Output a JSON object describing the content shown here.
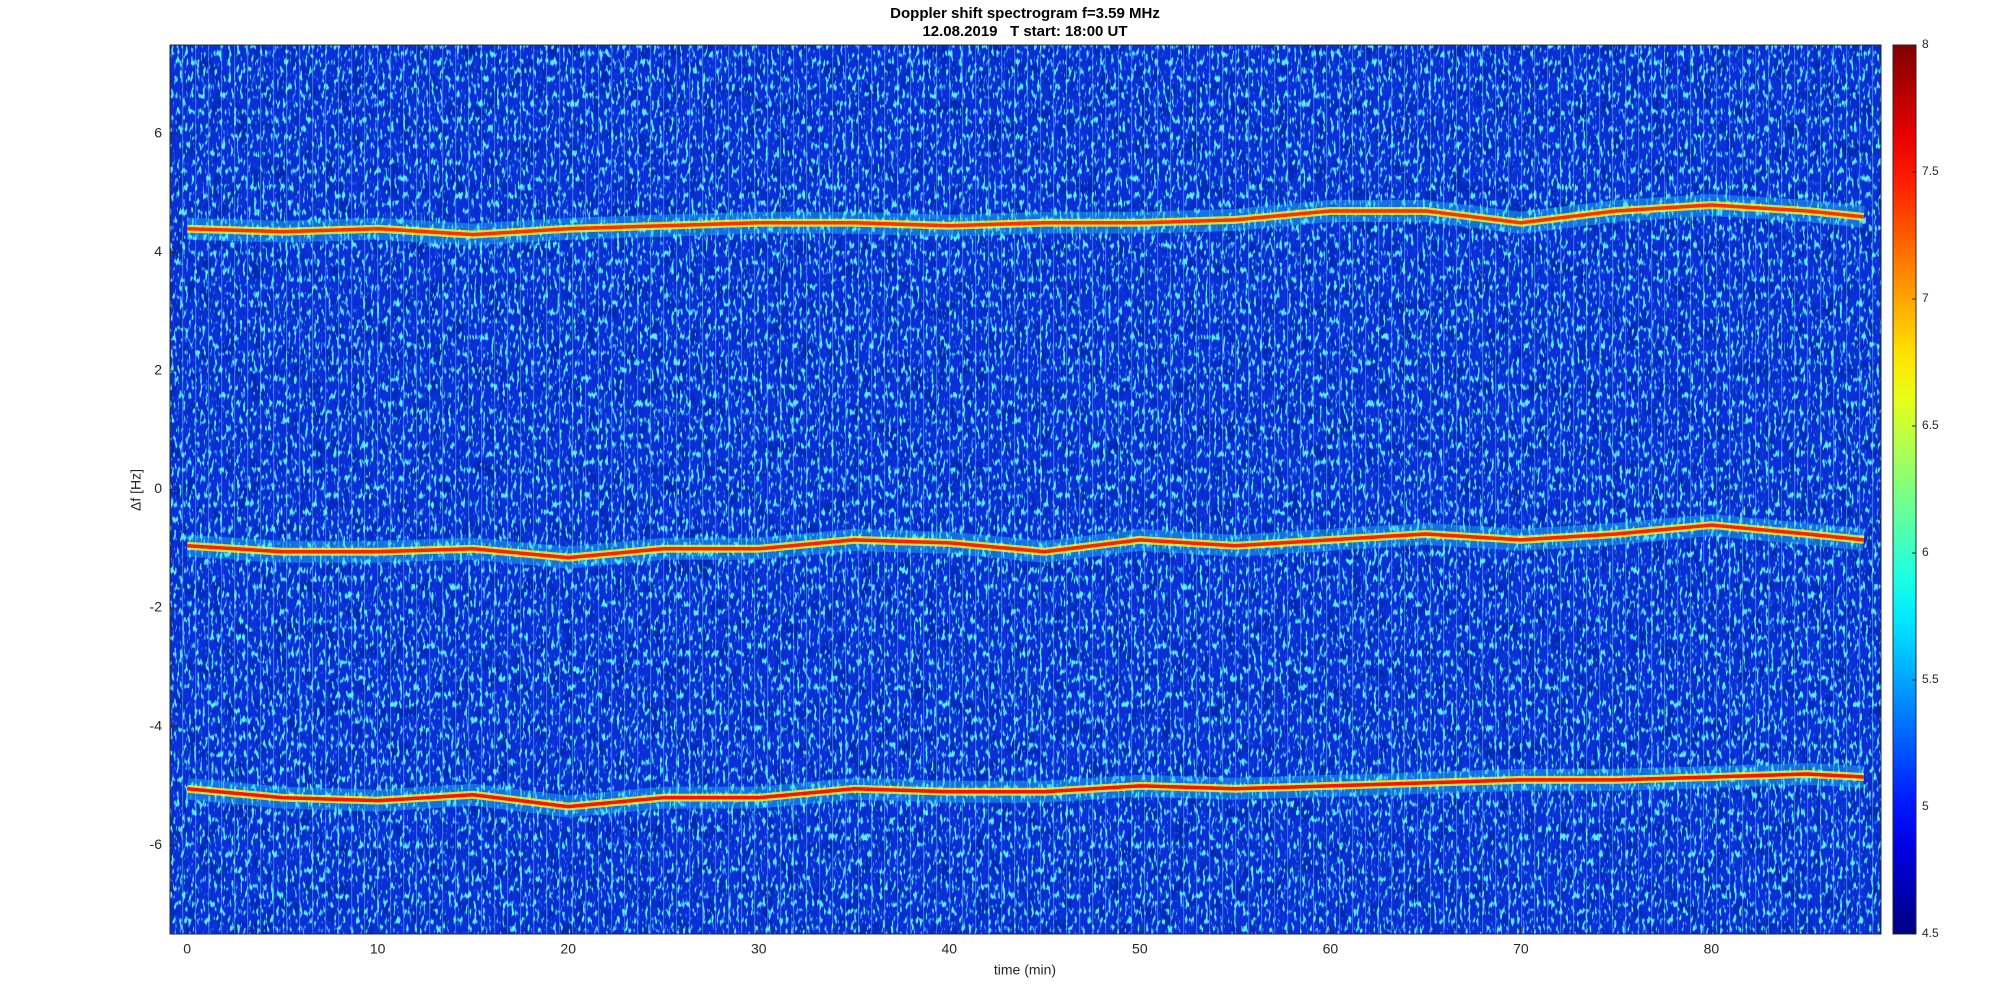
{
  "chart_data": {
    "type": "spectrogram",
    "title": "Doppler shift spectrogram f=3.59 MHz",
    "subtitle": "12.08.2019   T start: 18:00 UT",
    "xlabel": "time (min)",
    "ylabel": "Δf [Hz]",
    "xlim": [
      -0.9,
      88.9
    ],
    "xticks": [
      0,
      10,
      20,
      30,
      40,
      50,
      60,
      70,
      80
    ],
    "ylim": [
      -7.5,
      7.5
    ],
    "yticks": [
      -6,
      -4,
      -2,
      0,
      2,
      4,
      6
    ],
    "colormap": "jet",
    "clim": [
      4.5,
      8
    ],
    "cticks": [
      4.5,
      5,
      5.5,
      6,
      6.5,
      7,
      7.5,
      8
    ],
    "x": [
      0,
      5,
      10,
      15,
      20,
      25,
      30,
      35,
      40,
      45,
      50,
      55,
      60,
      65,
      70,
      75,
      80,
      85,
      88
    ],
    "traces": [
      {
        "color": "#ff3000",
        "values": [
          4.4,
          4.35,
          4.4,
          4.3,
          4.4,
          4.45,
          4.5,
          4.5,
          4.45,
          4.5,
          4.5,
          4.55,
          4.7,
          4.7,
          4.5,
          4.7,
          4.8,
          4.7,
          4.6
        ]
      },
      {
        "color": "#ff2000",
        "values": [
          -0.95,
          -1.05,
          -1.05,
          -1.0,
          -1.15,
          -1.0,
          -1.0,
          -0.85,
          -0.9,
          -1.05,
          -0.85,
          -0.95,
          -0.85,
          -0.75,
          -0.85,
          -0.75,
          -0.6,
          -0.75,
          -0.85
        ]
      },
      {
        "color": "#ff1000",
        "values": [
          -5.05,
          -5.2,
          -5.25,
          -5.15,
          -5.35,
          -5.2,
          -5.2,
          -5.05,
          -5.1,
          -5.1,
          -5.0,
          -5.05,
          -5.0,
          -4.95,
          -4.9,
          -4.9,
          -4.85,
          -4.8,
          -4.85
        ]
      }
    ]
  }
}
